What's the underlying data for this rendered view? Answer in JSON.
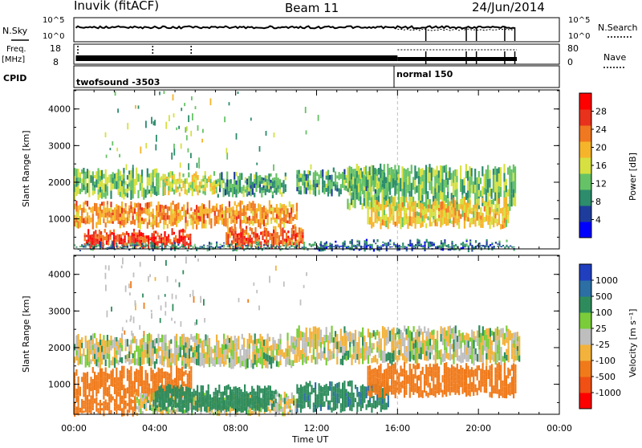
{
  "header": {
    "station": "Inuvik (fitACF)",
    "beam": "Beam 11",
    "date": "24/Jun/2014"
  },
  "summary_panels": {
    "nsky": {
      "label": "N.Sky",
      "ticks": [
        "10^5",
        "10^0"
      ]
    },
    "nsearch": {
      "label": "N.Search",
      "ticks": [
        "10^5",
        "10^0"
      ]
    },
    "freq": {
      "label_line1": "Freq.",
      "label_line2": "[MHz]",
      "ticks": [
        "18",
        "8"
      ]
    },
    "nave": {
      "label": "Nave",
      "ticks": [
        "80",
        "0"
      ]
    },
    "cpid": {
      "label": "CPID",
      "segments": [
        "twofsound -3503",
        "normal 150"
      ]
    }
  },
  "colors": {
    "power": [
      "#0000ff",
      "#1e3c9c",
      "#2c8c6c",
      "#66c266",
      "#d6e040",
      "#f6b42a",
      "#f07820",
      "#e8321c",
      "#ff0000"
    ],
    "velocity": [
      "#1f3fbf",
      "#2b6fa4",
      "#2e8c5c",
      "#7acc3a",
      "#bebebe",
      "#f2b23c",
      "#f07a1a",
      "#f05014",
      "#ff0000"
    ],
    "grey": "#c0c0c0"
  },
  "chart_data": [
    {
      "type": "heatmap",
      "parameter": "Power",
      "xlabel": "",
      "ylabel": "Slant Range [km]",
      "x_ticks": [
        "00:00",
        "04:00",
        "08:00",
        "12:00",
        "16:00",
        "20:00",
        "00:00"
      ],
      "x_range_hours": [
        0,
        24
      ],
      "y_ticks": [
        "1000",
        "2000",
        "3000",
        "4000"
      ],
      "y_range_km": [
        180,
        4520
      ],
      "colorbar": {
        "label": "Power [dB]",
        "ticks": [
          "4",
          "8",
          "12",
          "16",
          "20",
          "24",
          "28"
        ],
        "range": [
          0,
          32
        ]
      },
      "echo_regions": [
        {
          "t": [
            0.0,
            4.2
          ],
          "r": [
            1600,
            2300
          ],
          "value": 12
        },
        {
          "t": [
            4.2,
            7.0
          ],
          "r": [
            1700,
            2200
          ],
          "value": 16
        },
        {
          "t": [
            7.0,
            10.5
          ],
          "r": [
            1650,
            2200
          ],
          "value": 10
        },
        {
          "t": [
            0.0,
            11.0
          ],
          "r": [
            800,
            1400
          ],
          "value": 22
        },
        {
          "t": [
            0.5,
            5.8
          ],
          "r": [
            250,
            650
          ],
          "value": 28
        },
        {
          "t": [
            7.5,
            11.3
          ],
          "r": [
            250,
            700
          ],
          "value": 26
        },
        {
          "t": [
            0.0,
            12.5
          ],
          "r": [
            200,
            280
          ],
          "value": 8
        },
        {
          "t": [
            11.0,
            15.8
          ],
          "r": [
            1700,
            2300
          ],
          "value": 10
        },
        {
          "t": [
            13.5,
            21.8
          ],
          "r": [
            1300,
            2400
          ],
          "value": 12
        },
        {
          "t": [
            14.5,
            21.5
          ],
          "r": [
            800,
            1500
          ],
          "value": 18
        },
        {
          "t": [
            12.0,
            21.8
          ],
          "r": [
            180,
            350
          ],
          "value": 6
        }
      ],
      "scatter_range_km": [
        2400,
        4500
      ],
      "scatter_hours": [
        1.5,
        6.5
      ]
    },
    {
      "type": "heatmap",
      "parameter": "Velocity",
      "xlabel": "Time UT",
      "ylabel": "Slant Range [km]",
      "x_ticks": [
        "00:00",
        "04:00",
        "08:00",
        "12:00",
        "16:00",
        "20:00",
        "00:00"
      ],
      "x_range_hours": [
        0,
        24
      ],
      "y_ticks": [
        "1000",
        "2000",
        "3000",
        "4000"
      ],
      "y_range_km": [
        180,
        4520
      ],
      "colorbar": {
        "label": "Velocity [m s⁻¹]",
        "ticks": [
          "1000",
          "500",
          "100",
          "25",
          "-25",
          "-100",
          "-500",
          "-1000"
        ]
      },
      "echo_regions": [
        {
          "t": [
            0.0,
            11.0
          ],
          "r": [
            1500,
            2300
          ],
          "value": 0
        },
        {
          "t": [
            11.0,
            22.0
          ],
          "r": [
            1600,
            2500
          ],
          "value": 0
        },
        {
          "t": [
            0.0,
            5.8
          ],
          "r": [
            600,
            1400
          ],
          "value": -400
        },
        {
          "t": [
            3.0,
            11.0
          ],
          "r": [
            200,
            700
          ],
          "value": 0
        },
        {
          "t": [
            4.0,
            10.0
          ],
          "r": [
            300,
            900
          ],
          "value": 200
        },
        {
          "t": [
            11.0,
            15.5
          ],
          "r": [
            300,
            1000
          ],
          "value": 250
        },
        {
          "t": [
            14.5,
            21.8
          ],
          "r": [
            700,
            1500
          ],
          "value": -200
        },
        {
          "t": [
            0.0,
            3.0
          ],
          "r": [
            200,
            600
          ],
          "value": -400
        }
      ],
      "scatter_range_km": [
        2400,
        4500
      ],
      "scatter_hours": [
        1.5,
        6.5
      ]
    }
  ],
  "annotations": {
    "mode_change_hour": 16
  }
}
